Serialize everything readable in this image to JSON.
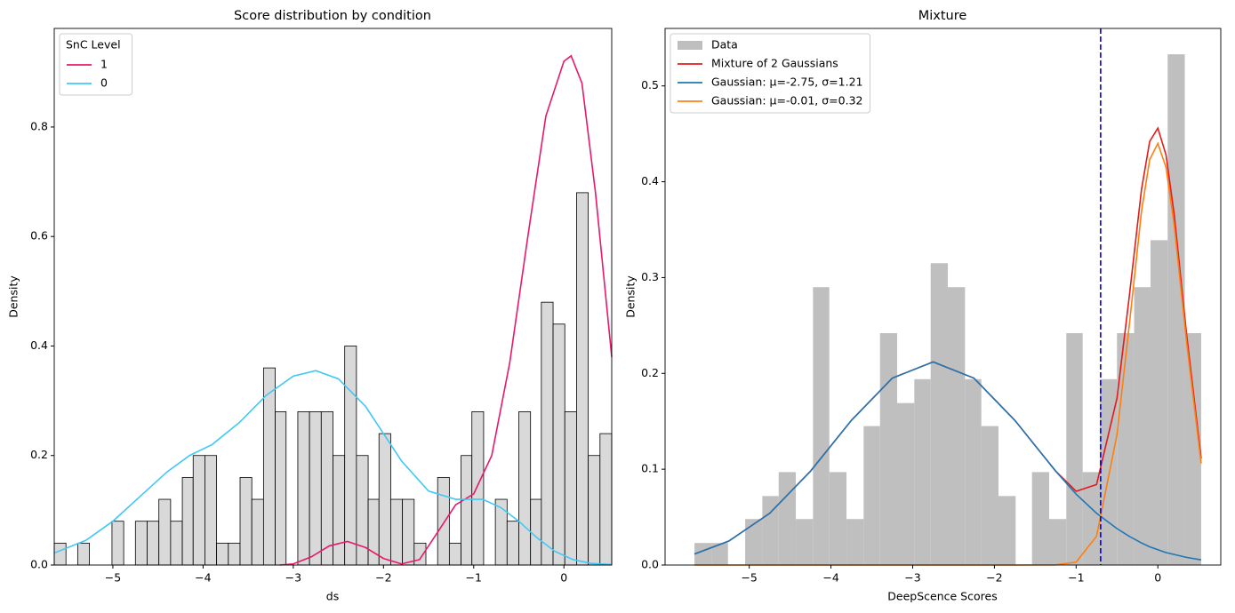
{
  "chart_data": [
    {
      "type": "histogram",
      "title": "Score distribution by condition",
      "xlabel": "ds",
      "ylabel": "Density",
      "xlim": [
        -5.65,
        0.53
      ],
      "ylim": [
        0,
        0.98
      ],
      "xticks": [
        {
          "value": -5,
          "label": "−5"
        },
        {
          "value": -4,
          "label": "−4"
        },
        {
          "value": -3,
          "label": "−3"
        },
        {
          "value": -2,
          "label": "−2"
        },
        {
          "value": -1,
          "label": "−1"
        },
        0
      ],
      "yticks": [
        {
          "value": 0,
          "label": "0.0"
        },
        0.2,
        0.4,
        0.6,
        0.8
      ],
      "color": "#d9d9d9",
      "edgecolor": "#000000",
      "bins": [
        -5.65,
        -5.52,
        -5.39,
        -5.26,
        -5.14,
        -5.01,
        -4.88,
        -4.75,
        -4.62,
        -4.49,
        -4.36,
        -4.23,
        -4.11,
        -3.98,
        -3.85,
        -3.72,
        -3.59,
        -3.46,
        -3.33,
        -3.2,
        -3.08,
        -2.95,
        -2.82,
        -2.69,
        -2.56,
        -2.43,
        -2.3,
        -2.17,
        -2.05,
        -1.92,
        -1.79,
        -1.66,
        -1.53,
        -1.4,
        -1.27,
        -1.14,
        -1.02,
        -0.89,
        -0.76,
        -0.63,
        -0.5,
        -0.37,
        -0.25,
        -0.12,
        0.01,
        0.14,
        0.27,
        0.4,
        0.53
      ],
      "values": [
        0.04,
        0,
        0.04,
        0,
        0,
        0.08,
        0,
        0.08,
        0.08,
        0.12,
        0.08,
        0.16,
        0.2,
        0.2,
        0.04,
        0.04,
        0.16,
        0.12,
        0.36,
        0.28,
        0,
        0.28,
        0.28,
        0.28,
        0.2,
        0.4,
        0.2,
        0.12,
        0.24,
        0.12,
        0.12,
        0.04,
        0,
        0.16,
        0.04,
        0.2,
        0.28,
        0,
        0.12,
        0.08,
        0.28,
        0.12,
        0.48,
        0.44,
        0.28,
        0.68,
        0.2,
        0.24
      ],
      "legend_title": "SnC Level",
      "legend": "upper left",
      "lines": [
        {
          "name": "1",
          "color": "#e8196b",
          "x": [
            -3.15,
            -3.0,
            -2.8,
            -2.6,
            -2.4,
            -2.2,
            -2.0,
            -1.8,
            -1.6,
            -1.4,
            -1.2,
            -1.0,
            -0.8,
            -0.6,
            -0.4,
            -0.2,
            0,
            0.08,
            0.2,
            0.35,
            0.53
          ],
          "values": [
            0,
            0.002,
            0.015,
            0.035,
            0.043,
            0.032,
            0.012,
            0.002,
            0.01,
            0.06,
            0.11,
            0.13,
            0.2,
            0.37,
            0.6,
            0.82,
            0.92,
            0.93,
            0.88,
            0.68,
            0.38
          ]
        },
        {
          "name": "0",
          "color": "#40c8f5",
          "x": [
            -5.65,
            -5.3,
            -5.0,
            -4.7,
            -4.4,
            -4.15,
            -3.9,
            -3.6,
            -3.3,
            -3.0,
            -2.75,
            -2.5,
            -2.2,
            -2.0,
            -1.8,
            -1.5,
            -1.2,
            -0.9,
            -0.7,
            -0.5,
            -0.3,
            -0.1,
            0.1,
            0.3,
            0.53
          ],
          "values": [
            0.022,
            0.045,
            0.08,
            0.125,
            0.17,
            0.2,
            0.22,
            0.26,
            0.31,
            0.345,
            0.355,
            0.34,
            0.29,
            0.24,
            0.19,
            0.135,
            0.12,
            0.12,
            0.105,
            0.08,
            0.05,
            0.025,
            0.01,
            0.003,
            0.001
          ]
        }
      ]
    },
    {
      "type": "histogram",
      "title": "Mixture",
      "xlabel": "DeepScence Scores",
      "ylabel": "Density",
      "xlim": [
        -6.03,
        0.77
      ],
      "ylim": [
        0,
        0.56
      ],
      "xticks": [
        {
          "value": -5,
          "label": "−5"
        },
        {
          "value": -4,
          "label": "−4"
        },
        {
          "value": -3,
          "label": "−3"
        },
        {
          "value": -2,
          "label": "−2"
        },
        {
          "value": -1,
          "label": "−1"
        },
        0
      ],
      "yticks": [
        {
          "value": 0,
          "label": "0.0"
        },
        0.1,
        0.2,
        0.3,
        0.4,
        0.5
      ],
      "name": "Data",
      "color": "#bfbfbf",
      "bins": [
        -5.67,
        -5.46,
        -5.26,
        -5.05,
        -4.84,
        -4.64,
        -4.43,
        -4.22,
        -4.02,
        -3.81,
        -3.6,
        -3.4,
        -3.19,
        -2.98,
        -2.78,
        -2.57,
        -2.36,
        -2.16,
        -1.95,
        -1.74,
        -1.54,
        -1.33,
        -1.12,
        -0.92,
        -0.71,
        -0.5,
        -0.29,
        -0.09,
        0.12,
        0.33,
        0.53
      ],
      "values": [
        0.023,
        0.023,
        0,
        0.048,
        0.072,
        0.097,
        0.048,
        0.29,
        0.097,
        0.048,
        0.145,
        0.242,
        0.169,
        0.194,
        0.315,
        0.29,
        0.194,
        0.145,
        0.072,
        0,
        0.097,
        0.048,
        0.242,
        0.097,
        0.194,
        0.242,
        0.29,
        0.339,
        0.533,
        0.242
      ],
      "legend": "upper left",
      "vline": {
        "x": -0.7,
        "color": "#0000dd"
      },
      "lines": [
        {
          "name": "Mixture of 2 Gaussians",
          "color": "#e41a1c",
          "x": [
            -5.67,
            -5.25,
            -4.75,
            -4.25,
            -3.75,
            -3.25,
            -2.75,
            -2.25,
            -1.75,
            -1.25,
            -1.0,
            -0.75,
            -0.5,
            -0.35,
            -0.2,
            -0.1,
            0,
            0.1,
            0.2,
            0.35,
            0.53
          ],
          "values": [
            0.0115,
            0.025,
            0.054,
            0.098,
            0.151,
            0.195,
            0.212,
            0.195,
            0.151,
            0.098,
            0.077,
            0.084,
            0.174,
            0.28,
            0.392,
            0.442,
            0.456,
            0.428,
            0.366,
            0.242,
            0.111
          ]
        },
        {
          "name": "Gaussian: μ=-2.75, σ=1.21",
          "color": "#1f77b4",
          "x": [
            -5.67,
            -5.25,
            -4.75,
            -4.25,
            -3.75,
            -3.25,
            -2.75,
            -2.25,
            -1.75,
            -1.25,
            -1.0,
            -0.75,
            -0.5,
            -0.35,
            -0.2,
            -0.1,
            0,
            0.1,
            0.2,
            0.35,
            0.53
          ],
          "values": [
            0.0115,
            0.025,
            0.054,
            0.098,
            0.151,
            0.195,
            0.212,
            0.195,
            0.151,
            0.098,
            0.074,
            0.054,
            0.038,
            0.03,
            0.023,
            0.019,
            0.016,
            0.013,
            0.011,
            0.008,
            0.0054
          ]
        },
        {
          "name": "Gaussian: μ=-0.01, σ=0.32",
          "color": "#ff7f0e",
          "x": [
            -5.67,
            -5.25,
            -4.75,
            -4.25,
            -3.75,
            -3.25,
            -2.75,
            -2.25,
            -1.75,
            -1.25,
            -1.0,
            -0.75,
            -0.5,
            -0.35,
            -0.2,
            -0.1,
            0,
            0.1,
            0.2,
            0.35,
            0.53
          ],
          "values": [
            0,
            0,
            0,
            0,
            0,
            0,
            0,
            0,
            0,
            0.0002,
            0.003,
            0.03,
            0.136,
            0.25,
            0.369,
            0.423,
            0.44,
            0.415,
            0.355,
            0.234,
            0.106
          ]
        }
      ]
    }
  ]
}
